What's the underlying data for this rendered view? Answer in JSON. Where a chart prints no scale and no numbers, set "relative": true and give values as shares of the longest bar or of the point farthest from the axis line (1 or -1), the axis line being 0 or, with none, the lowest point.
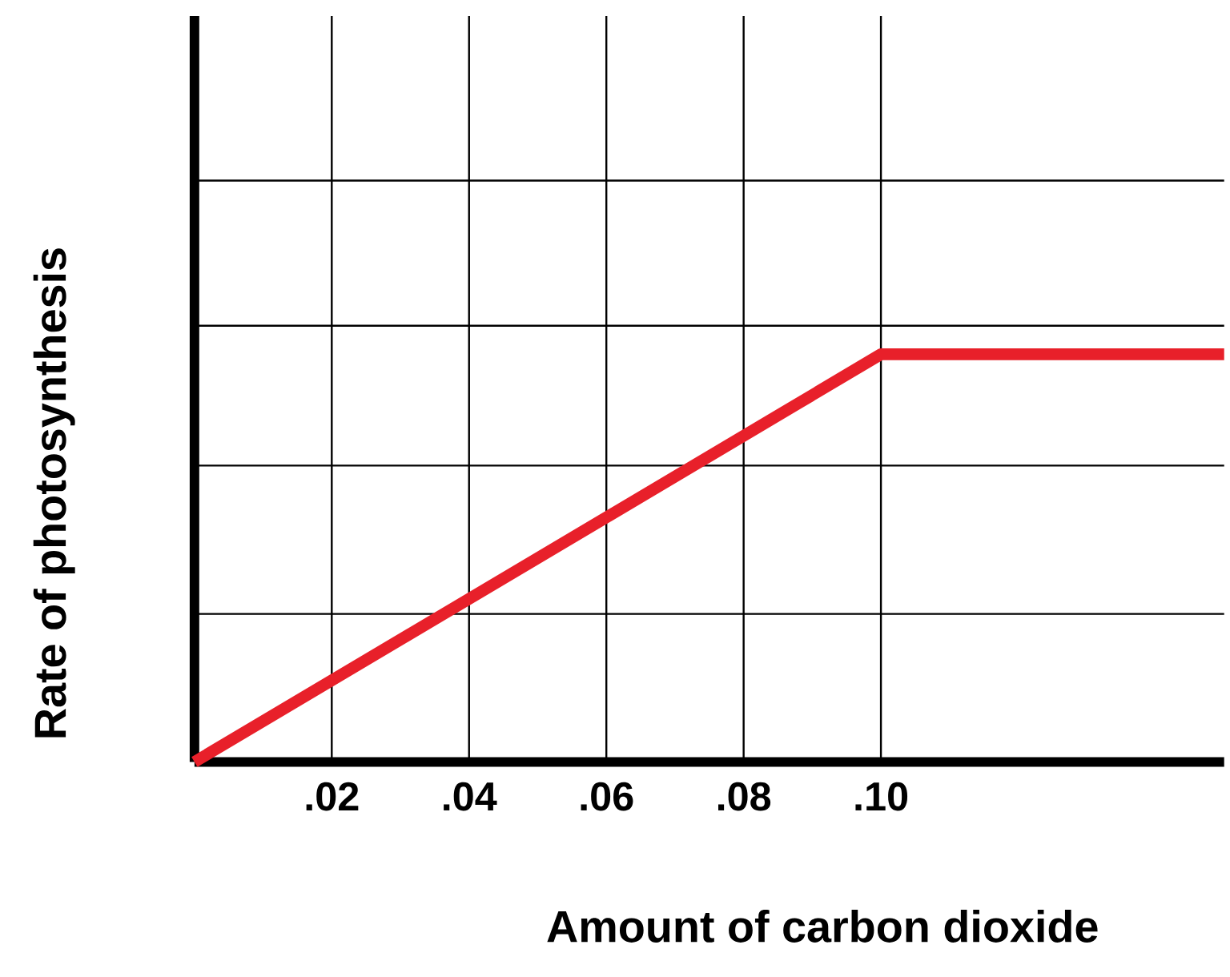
{
  "chart_data": {
    "type": "line",
    "relative": true,
    "xlabel": "Amount of carbon dioxide",
    "ylabel": "Rate of photosynthesis",
    "x": [
      0,
      0.1,
      0.15
    ],
    "series": [
      {
        "color": "#e8202a",
        "values": [
          0,
          1,
          1
        ]
      }
    ],
    "xlim": [
      0,
      0.15
    ],
    "xticks": [
      {
        "value": 0.02,
        "label": ".02"
      },
      {
        "value": 0.04,
        "label": ".04"
      },
      {
        "value": 0.06,
        "label": ".06"
      },
      {
        "value": 0.08,
        "label": ".08"
      },
      {
        "value": 0.1,
        "label": ".10"
      }
    ],
    "grid": true
  }
}
